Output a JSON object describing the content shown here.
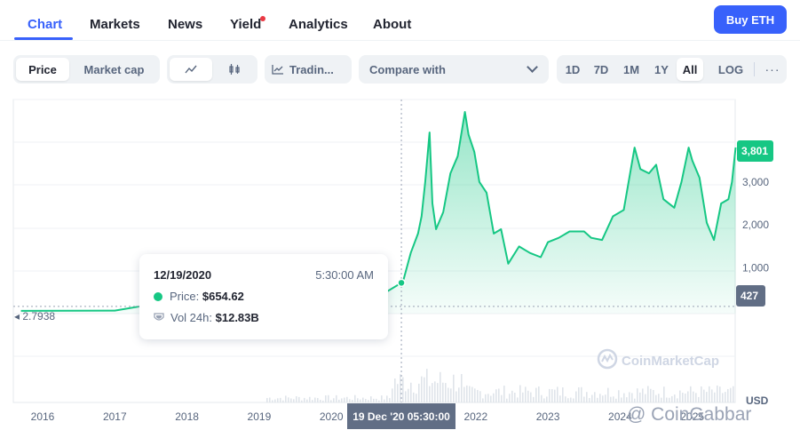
{
  "nav": {
    "tabs": [
      "Chart",
      "Markets",
      "News",
      "Yield",
      "Analytics",
      "About"
    ],
    "active": "Chart",
    "buy_label": "Buy ETH"
  },
  "toolbar": {
    "price_label": "Price",
    "market_cap_label": "Market cap",
    "trading_label": "Tradin...",
    "compare_label": "Compare with",
    "ranges": [
      "1D",
      "7D",
      "1M",
      "1Y",
      "All",
      "LOG"
    ],
    "active_range": "All"
  },
  "tooltip": {
    "date": "12/19/2020",
    "time": "5:30:00 AM",
    "price_label": "Price:",
    "price_value": "$654.62",
    "vol_label": "Vol 24h:",
    "vol_value": "$12.83B"
  },
  "price_badges": {
    "current": "3,801",
    "start": "427"
  },
  "first_value_label": "2.7938",
  "x_hover_label": "19 Dec '20 05:30:00",
  "currency": "USD",
  "watermarks": {
    "cmc": "CoinMarketCap",
    "cg": "@ CoinGabbar"
  },
  "colors": {
    "accent": "#3861fb",
    "up": "#16c784",
    "muted": "#58667e",
    "badge_gray": "#616e85"
  },
  "chart_data": {
    "type": "area",
    "x_unit": "year",
    "ylim": [
      0,
      4000
    ],
    "yticks": [
      1000,
      2000,
      3000
    ],
    "ytick_labels": [
      "1,000",
      "2,000",
      "3,000"
    ],
    "xtick_labels": [
      "2016",
      "2017",
      "2018",
      "2019",
      "2020",
      "2022",
      "2023",
      "2024",
      "2025"
    ],
    "xtick_values": [
      2016,
      2017,
      2018,
      2019,
      2020,
      2022,
      2023,
      2024,
      2025
    ],
    "hover_x": 2020.97,
    "hover_y": 654.62,
    "series": [
      {
        "x": [
          2015.7,
          2017.0,
          2017.4,
          2017.5,
          2020.7,
          2020.97,
          2021.0,
          2021.1,
          2021.2,
          2021.25,
          2021.3,
          2021.36,
          2021.4,
          2021.45,
          2021.55,
          2021.65,
          2021.75,
          2021.85,
          2021.9,
          2021.98,
          2022.05,
          2022.15,
          2022.25,
          2022.35,
          2022.45,
          2022.6,
          2022.75,
          2022.9,
          2023.0,
          2023.15,
          2023.3,
          2023.5,
          2023.6,
          2023.75,
          2023.9,
          2024.05,
          2024.2,
          2024.28,
          2024.4,
          2024.5,
          2024.6,
          2024.75,
          2024.85,
          2024.95,
          2025.0,
          2025.1,
          2025.2,
          2025.3,
          2025.4,
          2025.5,
          2025.55,
          2025.6
        ],
        "y": [
          2.79,
          8,
          120,
          250,
          380,
          654.62,
          730,
          1350,
          1800,
          2200,
          3000,
          4150,
          2500,
          1900,
          2300,
          3200,
          3600,
          4800,
          4100,
          3700,
          3000,
          2750,
          1800,
          1900,
          1100,
          1500,
          1350,
          1250,
          1600,
          1700,
          1850,
          1850,
          1700,
          1650,
          2200,
          2350,
          3800,
          3300,
          3200,
          3400,
          2600,
          2400,
          3000,
          3800,
          3500,
          3100,
          2050,
          1650,
          2500,
          2600,
          3000,
          3801
        ]
      }
    ]
  }
}
